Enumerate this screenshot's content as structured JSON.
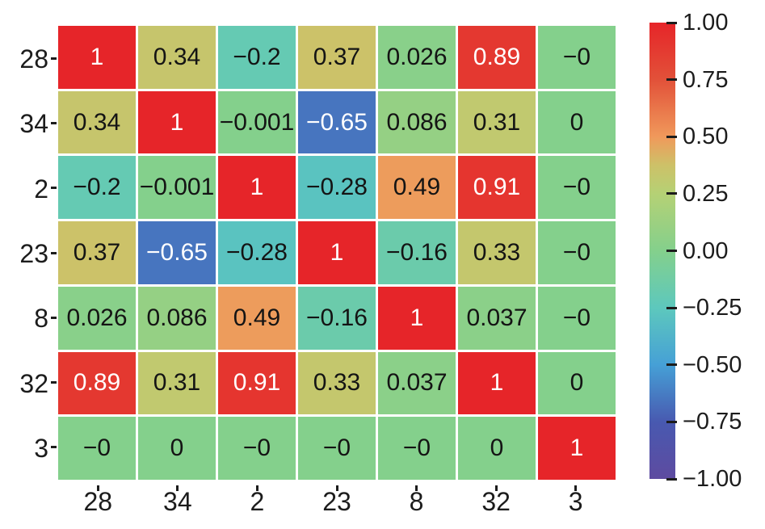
{
  "figure": {
    "background_color": "#ffffff",
    "tick_color": "#1c1c1c",
    "label_color": "#1c1c1c"
  },
  "chart_data": {
    "type": "heatmap",
    "title": "",
    "xlabel": "",
    "ylabel": "",
    "x_tick_labels": [
      "28",
      "34",
      "2",
      "23",
      "8",
      "32",
      "3"
    ],
    "y_tick_labels": [
      "28",
      "34",
      "2",
      "23",
      "8",
      "32",
      "3"
    ],
    "values": [
      [
        1,
        0.34,
        -0.2,
        0.37,
        0.026,
        0.89,
        0
      ],
      [
        0.34,
        1,
        -0.001,
        -0.65,
        0.086,
        0.31,
        0
      ],
      [
        -0.2,
        -0.001,
        1,
        -0.28,
        0.49,
        0.91,
        0
      ],
      [
        0.37,
        -0.65,
        -0.28,
        1,
        -0.16,
        0.33,
        0
      ],
      [
        0.026,
        0.086,
        0.49,
        -0.16,
        1,
        0.037,
        0
      ],
      [
        0.89,
        0.31,
        0.91,
        0.33,
        0.037,
        1,
        0
      ],
      [
        0,
        0,
        0,
        0,
        0,
        0,
        1
      ]
    ],
    "cell_labels": [
      [
        "1",
        "0.34",
        "−0.2",
        "0.37",
        "0.026",
        "0.89",
        "−0"
      ],
      [
        "0.34",
        "1",
        "−0.001",
        "−0.65",
        "0.086",
        "0.31",
        "0"
      ],
      [
        "−0.2",
        "−0.001",
        "1",
        "−0.28",
        "0.49",
        "0.91",
        "−0"
      ],
      [
        "0.37",
        "−0.65",
        "−0.28",
        "1",
        "−0.16",
        "0.33",
        "−0"
      ],
      [
        "0.026",
        "0.086",
        "0.49",
        "−0.16",
        "1",
        "0.037",
        "−0"
      ],
      [
        "0.89",
        "0.31",
        "0.91",
        "0.33",
        "0.037",
        "1",
        "0"
      ],
      [
        "−0",
        "0",
        "−0",
        "−0",
        "−0",
        "0",
        "1"
      ]
    ],
    "vmin": -1,
    "vmax": 1,
    "grid_line_color": "#ffffff",
    "annotation_colors": {
      "on_dark": "#ffffff",
      "on_light": "#141414"
    },
    "colormap_stops": [
      {
        "v": -1.0,
        "c": "#5e4ba0"
      },
      {
        "v": -0.75,
        "c": "#4859b0"
      },
      {
        "v": -0.5,
        "c": "#46a0d6"
      },
      {
        "v": -0.25,
        "c": "#5dc8bd"
      },
      {
        "v": 0.0,
        "c": "#84d08c"
      },
      {
        "v": 0.25,
        "c": "#b5d175"
      },
      {
        "v": 0.375,
        "c": "#cdc168"
      },
      {
        "v": 0.5,
        "c": "#f0995b"
      },
      {
        "v": 0.75,
        "c": "#e25139"
      },
      {
        "v": 1.0,
        "c": "#e62529"
      }
    ],
    "colorbar": {
      "position": "right",
      "tick_labels": [
        "1.00",
        "0.75",
        "0.50",
        "0.25",
        "0.00",
        "−0.25",
        "−0.50",
        "−0.75",
        "−1.00"
      ],
      "tick_values": [
        1,
        0.75,
        0.5,
        0.25,
        0,
        -0.25,
        -0.5,
        -0.75,
        -1
      ]
    }
  }
}
